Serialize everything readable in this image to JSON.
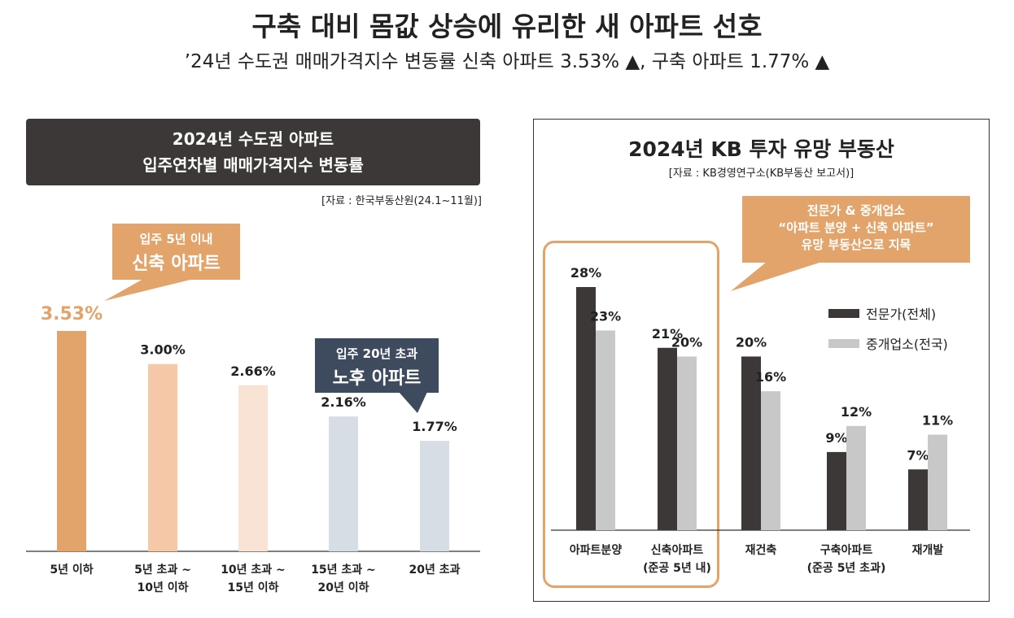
{
  "header": {
    "title": "구축 대비 몸값 상승에 유리한 새 아파트 선호",
    "subtitle": "’24년 수도권 매매가격지수 변동률 신축 아파트 3.53% ▲, 구축 아파트 1.77% ▲"
  },
  "left_panel": {
    "header_line1": "2024년 수도권 아파트",
    "header_line2": "입주연차별 매매가격지수 변동률",
    "source": "[자료 : 한국부동산원(24.1~11월)]",
    "callout_new": {
      "line1": "입주 5년 이내",
      "line2": "신축 아파트"
    },
    "callout_old": {
      "line1": "입주 20년 초과",
      "line2": "노후 아파트"
    }
  },
  "right_panel": {
    "title": "2024년 KB 투자 유망 부동산",
    "source": "[자료 : KB경영연구소(KB부동산 보고서)]",
    "callout": {
      "line1": "전문가 & 중개업소",
      "line2": "“아파트 분양 + 신축 아파트”",
      "line3": "유망 부동산으로 지목"
    }
  },
  "chart_data": [
    {
      "type": "bar",
      "title": "2024년 수도권 아파트 입주연차별 매매가격지수 변동률",
      "categories": [
        "5년 이하",
        "5년 초과 ~\n10년 이하",
        "10년 초과 ~\n15년 이하",
        "15년 초과 ~\n20년 이하",
        "20년 초과"
      ],
      "values": [
        3.53,
        3.0,
        2.66,
        2.16,
        1.77
      ],
      "value_labels": [
        "3.53%",
        "3.00%",
        "2.66%",
        "2.16%",
        "1.77%"
      ],
      "colors": [
        "#e3a46b",
        "#f5c9a8",
        "#f8e3d4",
        "#d7dde5",
        "#d7dde5"
      ],
      "ylim": [
        0,
        3.53
      ],
      "grid": false,
      "legend": "none"
    },
    {
      "type": "bar",
      "title": "2024년 KB 투자 유망 부동산",
      "categories": [
        "아파트분양",
        "신축아파트\n(준공 5년 내)",
        "재건축",
        "구축아파트\n(준공 5년 초과)",
        "재개발"
      ],
      "series": [
        {
          "name": "전문가(전체)",
          "values": [
            28,
            21,
            20,
            9,
            7
          ],
          "color": "#3d3838"
        },
        {
          "name": "중개업소(전국)",
          "values": [
            23,
            20,
            16,
            12,
            11
          ],
          "color": "#c8c8c8"
        }
      ],
      "ylim": [
        0,
        28
      ],
      "grid": false,
      "legend": "right"
    }
  ]
}
